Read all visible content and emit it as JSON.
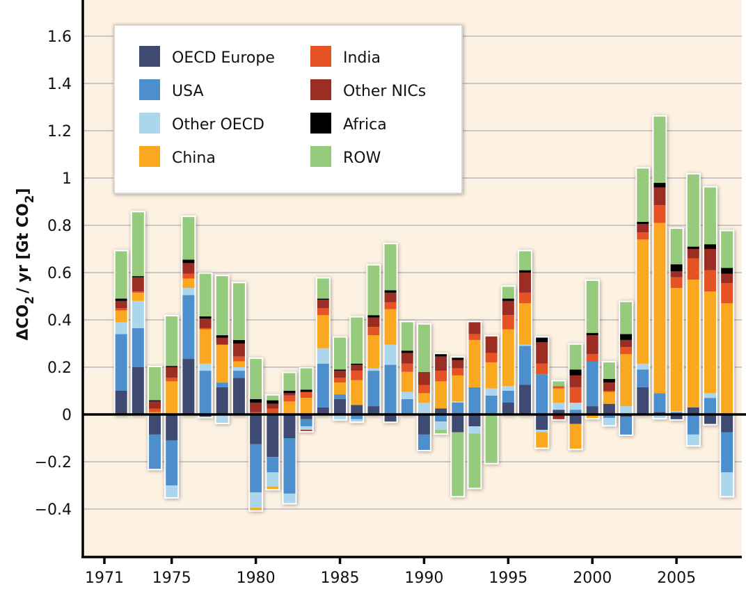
{
  "chart_data": {
    "type": "bar",
    "stacked": true,
    "title": "",
    "xlabel": "",
    "ylabel": "ΔCO₂ / yr [Gt CO₂]",
    "ylabel_parts": {
      "delta": "ΔCO",
      "sub1": "2",
      "mid": "/ yr [Gt CO",
      "sub2": "2",
      "end": "]"
    },
    "ylim": [
      -0.6,
      1.75
    ],
    "yticks": [
      1.6,
      1.4,
      1.2,
      1,
      0.8,
      0.6,
      0.4,
      0.2,
      0,
      -0.2,
      -0.4
    ],
    "ytick_labels": [
      "1.6",
      "1.4",
      "1.2",
      "1",
      "0.8",
      "0.6",
      "0.4",
      "0.2",
      "0",
      "−0.2",
      "−0.4"
    ],
    "xticks": [
      1971,
      1975,
      1980,
      1985,
      1990,
      1995,
      2000,
      2005
    ],
    "xtick_labels": [
      "1971",
      "1975",
      "1980",
      "1985",
      "1990",
      "1995",
      "2000",
      "2005"
    ],
    "grid": true,
    "legend_position": "top-left",
    "categories": [
      1972,
      1973,
      1974,
      1975,
      1976,
      1977,
      1978,
      1979,
      1980,
      1981,
      1982,
      1983,
      1984,
      1985,
      1986,
      1987,
      1988,
      1989,
      1990,
      1991,
      1992,
      1993,
      1994,
      1995,
      1996,
      1997,
      1998,
      1999,
      2000,
      2001,
      2002,
      2003,
      2004,
      2005,
      2006,
      2007,
      2008
    ],
    "series": [
      {
        "name": "OECD Europe",
        "color": "#3e4a72",
        "values": [
          0.1,
          0.2,
          -0.085,
          -0.11,
          0.235,
          -0.01,
          0.115,
          0.155,
          -0.125,
          -0.18,
          -0.1,
          -0.02,
          0.03,
          0.065,
          0.04,
          0.035,
          -0.03,
          0,
          -0.085,
          0.025,
          -0.075,
          -0.05,
          -0.005,
          0.05,
          0.125,
          -0.065,
          0.02,
          -0.04,
          0.035,
          0.045,
          -0.01,
          0.115,
          0.01,
          -0.02,
          0.03,
          -0.04,
          -0.075
        ]
      },
      {
        "name": "USA",
        "color": "#4d8fcc",
        "values": [
          0.24,
          0.165,
          -0.145,
          -0.19,
          0.27,
          0.185,
          0.02,
          0.03,
          -0.205,
          -0.065,
          -0.235,
          -0.03,
          0.185,
          0.02,
          -0.02,
          0.15,
          0.21,
          0.065,
          -0.065,
          -0.03,
          0.05,
          0.115,
          0.08,
          0.05,
          0.165,
          0.17,
          0,
          0.02,
          0.19,
          -0.015,
          -0.075,
          0.075,
          0.08,
          0.01,
          -0.085,
          0.07,
          -0.17
        ]
      },
      {
        "name": "Other OECD",
        "color": "#acd6ec",
        "values": [
          0.05,
          0.115,
          0,
          -0.05,
          0.03,
          0.03,
          -0.035,
          0.015,
          -0.065,
          -0.06,
          -0.04,
          -0.015,
          0.065,
          -0.02,
          -0.01,
          0.01,
          0.085,
          0.03,
          0.05,
          -0.035,
          0.005,
          -0.03,
          0.03,
          0.02,
          0.005,
          -0.01,
          0.03,
          0.03,
          0,
          -0.03,
          0.035,
          0.025,
          -0.015,
          0.005,
          -0.045,
          0.02,
          -0.1
        ]
      },
      {
        "name": "China",
        "color": "#f9a81f",
        "values": [
          0.05,
          0.035,
          0.01,
          0.14,
          0.04,
          0.145,
          0.16,
          0.025,
          -0.01,
          -0.01,
          0.055,
          0.07,
          0.14,
          0.05,
          0.105,
          0.14,
          0.15,
          0.085,
          0.04,
          0.115,
          0.11,
          0.2,
          0.11,
          0.24,
          0.175,
          -0.065,
          0.06,
          -0.105,
          -0.015,
          0.05,
          0.22,
          0.525,
          0.72,
          0.52,
          0.54,
          0.43,
          0.47
        ]
      },
      {
        "name": "India",
        "color": "#e55325",
        "values": [
          0.01,
          0.005,
          0.015,
          0.015,
          0.02,
          0.005,
          0,
          0.02,
          0.01,
          0.025,
          0.025,
          0.025,
          0.03,
          0.02,
          0.04,
          0.035,
          0.03,
          0.035,
          0.035,
          0.045,
          0.03,
          0.025,
          0.04,
          0.06,
          0.045,
          0.045,
          0.01,
          0.065,
          0.03,
          0.005,
          0.03,
          0.03,
          0.075,
          0.045,
          0.09,
          0.09,
          0.085
        ]
      },
      {
        "name": "Other NICs",
        "color": "#9b2d22",
        "values": [
          0.03,
          0.06,
          0.03,
          0.045,
          0.045,
          0.04,
          0.03,
          0.055,
          0.04,
          0.02,
          0.01,
          -0.005,
          0.035,
          0.03,
          0.025,
          0.04,
          0.04,
          0.045,
          0.055,
          0.06,
          0.035,
          0.05,
          0.07,
          0.06,
          0.085,
          0.09,
          -0.02,
          0.05,
          0.08,
          0.035,
          0.03,
          0.035,
          0.075,
          0.025,
          0.04,
          0.09,
          0.04
        ]
      },
      {
        "name": "Africa",
        "color": "#000000",
        "values": [
          0.01,
          0.005,
          0.005,
          0.005,
          0.015,
          0.01,
          0.01,
          0.015,
          0.015,
          0.015,
          0.01,
          0.01,
          0.005,
          0.005,
          0.005,
          0.01,
          0.01,
          0.01,
          0,
          0.01,
          0.01,
          0,
          0,
          0.01,
          0.01,
          0.02,
          0,
          0.025,
          0.01,
          0.015,
          0.025,
          0.01,
          0.02,
          0.03,
          0.01,
          0.02,
          0.025
        ]
      },
      {
        "name": "ROW",
        "color": "#96cb7d",
        "values": [
          0.2,
          0.27,
          0.14,
          0.21,
          0.18,
          0.18,
          0.25,
          0.24,
          0.17,
          0.02,
          0.075,
          0.09,
          0.085,
          0.135,
          0.195,
          0.21,
          0.195,
          0.12,
          0.2,
          -0.015,
          -0.27,
          -0.23,
          -0.2,
          0.05,
          0.08,
          0,
          0.02,
          0.105,
          0.22,
          0.07,
          0.135,
          0.225,
          0.28,
          0.15,
          0.305,
          0.24,
          0.155
        ]
      }
    ]
  },
  "legend": {
    "items": [
      {
        "label": "OECD Europe",
        "color": "#3e4a72"
      },
      {
        "label": "USA",
        "color": "#4d8fcc"
      },
      {
        "label": "Other OECD",
        "color": "#acd6ec"
      },
      {
        "label": "China",
        "color": "#f9a81f"
      },
      {
        "label": "India",
        "color": "#e55325"
      },
      {
        "label": "Other NICs",
        "color": "#9b2d22"
      },
      {
        "label": "Africa",
        "color": "#000000"
      },
      {
        "label": "ROW",
        "color": "#96cb7d"
      }
    ]
  },
  "colors": {
    "plot_background": "#fdf1e1",
    "gridline": "#b9b7bd",
    "axis": "#000000",
    "bar_outline": "#ffffff"
  }
}
